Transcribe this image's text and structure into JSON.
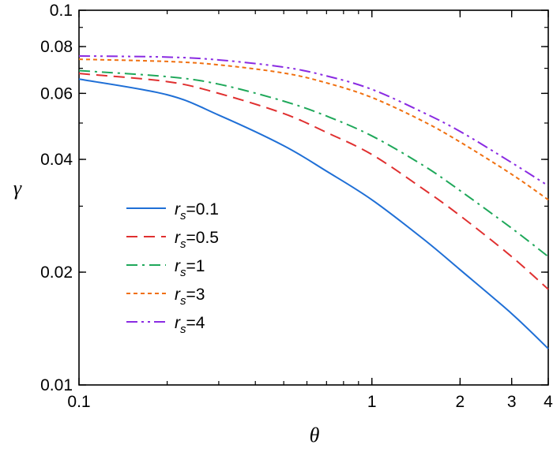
{
  "chart_data": {
    "type": "line",
    "title": "",
    "xlabel": "θ",
    "ylabel": "γ",
    "xscale": "log",
    "yscale": "log",
    "xlim": [
      0.1,
      4
    ],
    "ylim": [
      0.01,
      0.1
    ],
    "x_ticks": [
      {
        "value": 0.1,
        "label": "0.1"
      },
      {
        "value": 1,
        "label": "1"
      },
      {
        "value": 2,
        "label": "2"
      },
      {
        "value": 3,
        "label": "3"
      },
      {
        "value": 4,
        "label": "4"
      }
    ],
    "y_ticks": [
      {
        "value": 0.01,
        "label": "0.01"
      },
      {
        "value": 0.02,
        "label": "0.02"
      },
      {
        "value": 0.04,
        "label": "0.04"
      },
      {
        "value": 0.06,
        "label": "0.06"
      },
      {
        "value": 0.08,
        "label": "0.08"
      },
      {
        "value": 0.1,
        "label": "0.1"
      }
    ],
    "legend_position": "center-left",
    "x": [
      0.1,
      0.2,
      0.3,
      0.5,
      0.7,
      1.0,
      1.5,
      2.0,
      3.0,
      4.0
    ],
    "series": [
      {
        "name": "rs=0.1",
        "label_var": "r",
        "label_sub": "s",
        "label_value": "=0.1",
        "color": "#1f6fd6",
        "dash": "solid",
        "values": [
          0.0655,
          0.0595,
          0.0525,
          0.0435,
          0.0372,
          0.0312,
          0.0245,
          0.0203,
          0.0155,
          0.0125
        ]
      },
      {
        "name": "rs=0.5",
        "label_var": "r",
        "label_sub": "s",
        "label_value": "=0.5",
        "color": "#e03030",
        "dash": "dashed",
        "values": [
          0.0678,
          0.0645,
          0.06,
          0.053,
          0.0472,
          0.0412,
          0.0333,
          0.0283,
          0.022,
          0.018
        ]
      },
      {
        "name": "rs=1",
        "label_var": "r",
        "label_sub": "s",
        "label_value": "=1",
        "color": "#1fa85a",
        "dash": "dashdot",
        "values": [
          0.069,
          0.0665,
          0.0635,
          0.0572,
          0.0522,
          0.0462,
          0.0385,
          0.033,
          0.0262,
          0.022
        ]
      },
      {
        "name": "rs=3",
        "label_var": "r",
        "label_sub": "s",
        "label_value": "=3",
        "color": "#f07010",
        "dash": "dotted",
        "values": [
          0.074,
          0.073,
          0.0715,
          0.068,
          0.064,
          0.0585,
          0.0505,
          0.0445,
          0.0365,
          0.0312
        ]
      },
      {
        "name": "rs=4",
        "label_var": "r",
        "label_sub": "s",
        "label_value": "=4",
        "color": "#8a2be2",
        "dash": "dashdotdot",
        "values": [
          0.0755,
          0.075,
          0.0737,
          0.0705,
          0.0668,
          0.0615,
          0.0533,
          0.0475,
          0.0392,
          0.034
        ]
      }
    ]
  }
}
